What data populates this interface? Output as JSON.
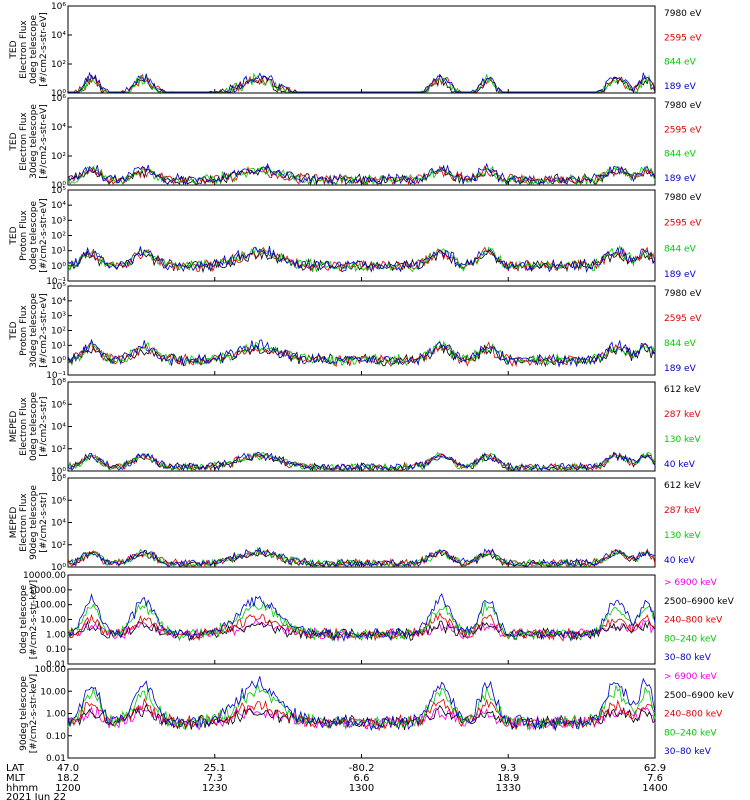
{
  "chart_data": [
    {
      "type": "line",
      "ylabel_lines": [
        "TED",
        "Electron Flux",
        "0deg telescope",
        "[#/cm2-s-str-eV]"
      ],
      "yscale": "log",
      "ylim": [
        1,
        1000000
      ],
      "y_ticks": [
        "10⁰",
        "10²",
        "10⁴",
        "10⁶"
      ],
      "series": [
        {
          "name": "7980 eV",
          "color": "#000000",
          "level": 2.0
        },
        {
          "name": "2595 eV",
          "color": "#dd0000",
          "level": 2.4
        },
        {
          "name": "844 eV",
          "color": "#00cc00",
          "level": 2.1
        },
        {
          "name": "189 eV",
          "color": "#0000cc",
          "level": 3.4
        }
      ],
      "quiet": 0.4
    },
    {
      "type": "line",
      "ylabel_lines": [
        "TED",
        "Electron Flux",
        "30deg telescope",
        "[#/cm2-s-str-eV]"
      ],
      "yscale": "log",
      "ylim": [
        1,
        1000000
      ],
      "y_ticks": [
        "10⁰",
        "10²",
        "10⁴",
        "10⁶"
      ],
      "series": [
        {
          "name": "7980 eV",
          "color": "#000000",
          "level": 2.0
        },
        {
          "name": "2595 eV",
          "color": "#dd0000",
          "level": 2.3
        },
        {
          "name": "844 eV",
          "color": "#00cc00",
          "level": 2.5
        },
        {
          "name": "189 eV",
          "color": "#0000cc",
          "level": 3.3
        }
      ],
      "quiet": 2.2
    },
    {
      "type": "line",
      "ylabel_lines": [
        "TED",
        "Proton Flux",
        "0deg telescope",
        "[#/cm2-s-str-eV]"
      ],
      "yscale": "log",
      "ylim": [
        0.1,
        100000
      ],
      "y_ticks": [
        "10⁻¹",
        "10⁰",
        "10¹",
        "10²",
        "10³",
        "10⁴",
        "10⁵"
      ],
      "series": [
        {
          "name": "7980 eV",
          "color": "#000000",
          "level": 1.3
        },
        {
          "name": "2595 eV",
          "color": "#dd0000",
          "level": 1.9
        },
        {
          "name": "844 eV",
          "color": "#00cc00",
          "level": 2.2
        },
        {
          "name": "189 eV",
          "color": "#0000cc",
          "level": 2.5
        }
      ],
      "quiet": 1.0
    },
    {
      "type": "line",
      "ylabel_lines": [
        "TED",
        "Proton Flux",
        "30deg telescope",
        "[#/cm2-s-str-eV]"
      ],
      "yscale": "log",
      "ylim": [
        0.1,
        100000
      ],
      "y_ticks": [
        "10⁻¹",
        "10⁰",
        "10¹",
        "10²",
        "10³",
        "10⁴",
        "10⁵"
      ],
      "series": [
        {
          "name": "7980 eV",
          "color": "#000000",
          "level": 1.3
        },
        {
          "name": "2595 eV",
          "color": "#dd0000",
          "level": 1.8
        },
        {
          "name": "844 eV",
          "color": "#00cc00",
          "level": 1.9
        },
        {
          "name": "189 eV",
          "color": "#0000cc",
          "level": 2.4
        }
      ],
      "quiet": 1.0
    },
    {
      "type": "line",
      "ylabel_lines": [
        "MEPED",
        "Electron Flux",
        "0deg telescope",
        "[#/cm2-s-str]"
      ],
      "yscale": "log",
      "ylim": [
        1,
        100000000
      ],
      "y_ticks": [
        "10⁰",
        "10²",
        "10⁴",
        "10⁶",
        "10⁸"
      ],
      "series": [
        {
          "name": "612 keV",
          "color": "#000000",
          "level": 5.4
        },
        {
          "name": "287 keV",
          "color": "#dd0000",
          "level": 5.8
        },
        {
          "name": "130 keV",
          "color": "#00cc00",
          "level": 6.2
        },
        {
          "name": "40 keV",
          "color": "#0000cc",
          "level": 6.6
        }
      ],
      "quiet": 2.1
    },
    {
      "type": "line",
      "ylabel_lines": [
        "MEPED",
        "Electron Flux",
        "90deg telescope",
        "[#/cm2-s-str]"
      ],
      "yscale": "log",
      "ylim": [
        1,
        100000000
      ],
      "y_ticks": [
        "10⁰",
        "10²",
        "10⁴",
        "10⁶",
        "10⁸"
      ],
      "series": [
        {
          "name": "612 keV",
          "color": "#000000",
          "level": 4.2
        },
        {
          "name": "287 keV",
          "color": "#dd0000",
          "level": 4.6
        },
        {
          "name": "130 keV",
          "color": "#00cc00",
          "level": 5.0
        },
        {
          "name": "40 keV",
          "color": "#0000cc",
          "level": 5.8
        }
      ],
      "quiet": 2.0
    },
    {
      "type": "line",
      "ylabel_lines": [
        "0deg telescope",
        "[#/cm2-s-str-keV]"
      ],
      "yscale": "log",
      "ylim": [
        0.01,
        10000
      ],
      "y_ticks": [
        "0.01",
        "0.10",
        "1.00",
        "10.00",
        "100.00",
        "1000.00",
        "10000.00"
      ],
      "series": [
        {
          "name": "> 6900 keV",
          "color": "#ee00ee",
          "level": 0.04
        },
        {
          "name": "2500–6900 keV",
          "color": "#000000",
          "level": 0.6
        },
        {
          "name": "240–800 keV",
          "color": "#dd0000",
          "level": 3
        },
        {
          "name": "80–240 keV",
          "color": "#00cc00",
          "level": 20
        },
        {
          "name": "30–80 keV",
          "color": "#0000cc",
          "level": 50
        }
      ],
      "quiet": 1.0
    },
    {
      "type": "line",
      "ylabel_lines": [
        "90deg telescope",
        "[#/cm2-s-str-keV]"
      ],
      "yscale": "log",
      "ylim": [
        0.01,
        1000
      ],
      "y_ticks": [
        "0.01",
        "0.10",
        "1.00",
        "10.00",
        "100.00"
      ],
      "series": [
        {
          "name": "> 6900 keV",
          "color": "#ee00ee",
          "level": 0.05
        },
        {
          "name": "2500–6900 keV",
          "color": "#000000",
          "level": 0.8
        },
        {
          "name": "240–800 keV",
          "color": "#dd0000",
          "level": 2.5
        },
        {
          "name": "80–240 keV",
          "color": "#00cc00",
          "level": 12
        },
        {
          "name": "30–80 keV",
          "color": "#0000cc",
          "level": 40
        }
      ],
      "quiet": 1.0
    }
  ],
  "x_axis": {
    "row_labels": [
      "LAT",
      "MLT",
      "hhmm"
    ],
    "ticks": [
      {
        "lat": "47.0",
        "mlt": "18.2",
        "time": "1200"
      },
      {
        "lat": "25.1",
        "mlt": "7.3",
        "time": "1230"
      },
      {
        "lat": "-80.2",
        "mlt": "6.6",
        "time": "1300"
      },
      {
        "lat": "9.3",
        "mlt": "18.9",
        "time": "1330"
      },
      {
        "lat": "62.9",
        "mlt": "7.6",
        "time": "1400"
      }
    ],
    "date": "2021 Jun 22"
  }
}
